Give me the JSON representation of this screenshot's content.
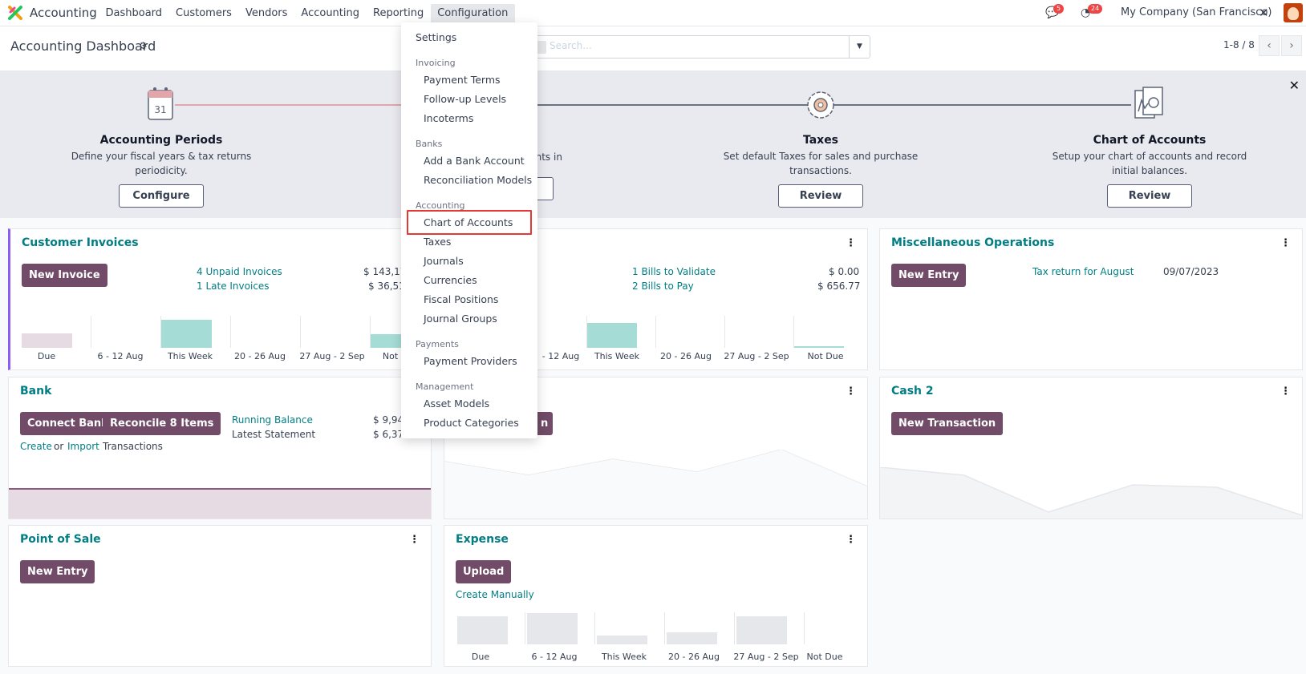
{
  "navbar": {
    "app_name": "Accounting",
    "menu": [
      "Dashboard",
      "Customers",
      "Vendors",
      "Accounting",
      "Reporting",
      "Configuration"
    ],
    "messages_count": "5",
    "activities_count": "24",
    "company": "My Company (San Francisco)"
  },
  "control": {
    "title": "Accounting Dashboard",
    "search_placeholder": "Search...",
    "pager": "1-8 / 8"
  },
  "banner": {
    "steps": [
      {
        "title": "Accounting Periods",
        "desc1": "Define your fiscal years & tax returns",
        "desc2": "periodicity.",
        "button": "Configure"
      },
      {
        "title": "",
        "desc1": "unts in",
        "desc2": "",
        "button": ""
      },
      {
        "title": "Taxes",
        "desc1": "Set default Taxes for sales and purchase",
        "desc2": "transactions.",
        "button": "Review"
      },
      {
        "title": "Chart of Accounts",
        "desc1": "Setup your chart of accounts and record",
        "desc2": "initial balances.",
        "button": "Review"
      }
    ]
  },
  "cards": {
    "customer_invoices": {
      "title": "Customer Invoices",
      "button": "New Invoice",
      "link1": "4 Unpaid Invoices",
      "amount1": "$ 143,17",
      "link2": "1 Late Invoices",
      "amount2": "$ 36,51",
      "labels": [
        "Due",
        "6 - 12 Aug",
        "This Week",
        "20 - 26 Aug",
        "27 Aug - 2 Sep",
        "Not Du"
      ]
    },
    "vendor_bills": {
      "link1": "1 Bills to Validate",
      "amount1": "$ 0.00",
      "link2": "2 Bills to Pay",
      "amount2": "$ 656.77",
      "labels": [
        "- 12 Aug",
        "This Week",
        "20 - 26 Aug",
        "27 Aug - 2 Sep",
        "Not Due"
      ]
    },
    "misc": {
      "title": "Miscellaneous Operations",
      "button": "New Entry",
      "link1": "Tax return for August",
      "date1": "09/07/2023"
    },
    "bank": {
      "title": "Bank",
      "button1": "Connect Bank",
      "button2": "Reconcile 8 Items",
      "link_running": "Running Balance",
      "amount_running": "$ 9,94",
      "latest_label": "Latest Statement",
      "amount_latest": "$ 6,37",
      "create": "Create",
      "or": "or",
      "import": "Import",
      "transactions": "Transactions"
    },
    "middle_bank": {
      "button": "n"
    },
    "cash2": {
      "title": "Cash 2",
      "button": "New Transaction"
    },
    "pos": {
      "title": "Point of Sale",
      "button": "New Entry"
    },
    "expense": {
      "title": "Expense",
      "button": "Upload",
      "link": "Create Manually",
      "labels": [
        "Due",
        "6 - 12 Aug",
        "This Week",
        "20 - 26 Aug",
        "27 Aug - 2 Sep",
        "Not Due"
      ]
    }
  },
  "dropdown": {
    "settings": "Settings",
    "sections": [
      {
        "header": "Invoicing",
        "items": [
          "Payment Terms",
          "Follow-up Levels",
          "Incoterms"
        ]
      },
      {
        "header": "Banks",
        "items": [
          "Add a Bank Account",
          "Reconciliation Models"
        ]
      },
      {
        "header": "Accounting",
        "items": [
          "Chart of Accounts",
          "Taxes",
          "Journals",
          "Currencies",
          "Fiscal Positions",
          "Journal Groups"
        ]
      },
      {
        "header": "Payments",
        "items": [
          "Payment Providers"
        ]
      },
      {
        "header": "Management",
        "items": [
          "Asset Models",
          "Product Categories"
        ]
      }
    ]
  },
  "colors": {
    "brand": "#714b67",
    "link": "#017e84",
    "highlight": "#e53935"
  }
}
